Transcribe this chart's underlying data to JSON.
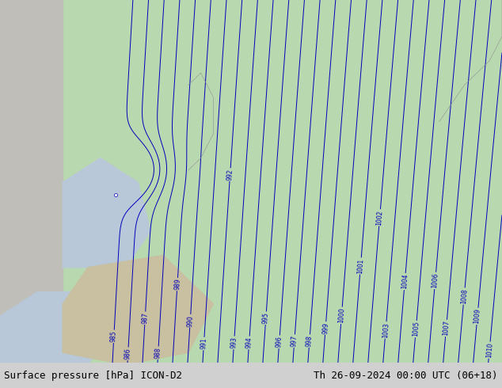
{
  "title_left": "Surface pressure [hPa] ICON-D2",
  "title_right": "Th 26-09-2024 00:00 UTC (06+18)",
  "background_color": "#ffffff",
  "ocean_color": "#b8c8d8",
  "land_green_color": "#b8d8b0",
  "land_tan_color": "#c8c0a0",
  "land_gray_color": "#c0beb8",
  "contour_color": "#0000bb",
  "figsize": [
    6.34,
    4.9
  ],
  "dpi": 100,
  "bottom_bar_color": "#d0d0d0",
  "bottom_text_color": "#000000",
  "font_size_title": 9
}
